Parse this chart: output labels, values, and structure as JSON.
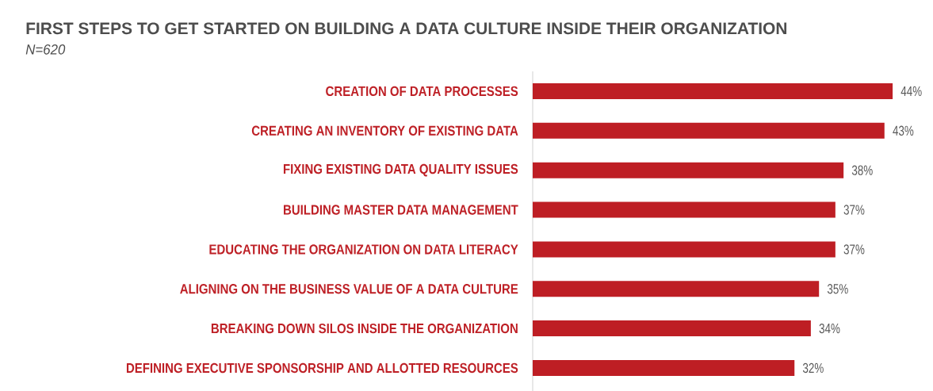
{
  "chart_data": {
    "type": "bar",
    "orientation": "horizontal",
    "title": "FIRST STEPS TO GET STARTED ON BUILDING A DATA CULTURE INSIDE THEIR ORGANIZATION",
    "subtitle": "N=620",
    "categories": [
      "CREATION OF DATA PROCESSES",
      "CREATING AN INVENTORY OF EXISTING DATA",
      "FIXING EXISTING DATA QUALITY ISSUES",
      "BUILDING MASTER DATA MANAGEMENT",
      "EDUCATING THE ORGANIZATION ON DATA LITERACY",
      "ALIGNING ON THE BUSINESS VALUE OF A DATA CULTURE",
      "BREAKING DOWN SILOS INSIDE THE ORGANIZATION",
      "DEFINING EXECUTIVE SPONSORSHIP AND ALLOTTED RESOURCES"
    ],
    "values": [
      44,
      43,
      38,
      37,
      37,
      35,
      34,
      32
    ],
    "value_labels": [
      "44%",
      "43%",
      "38%",
      "37%",
      "37%",
      "35%",
      "34%",
      "32%"
    ],
    "color": "#be1e24",
    "tick_labels": "y"
  }
}
